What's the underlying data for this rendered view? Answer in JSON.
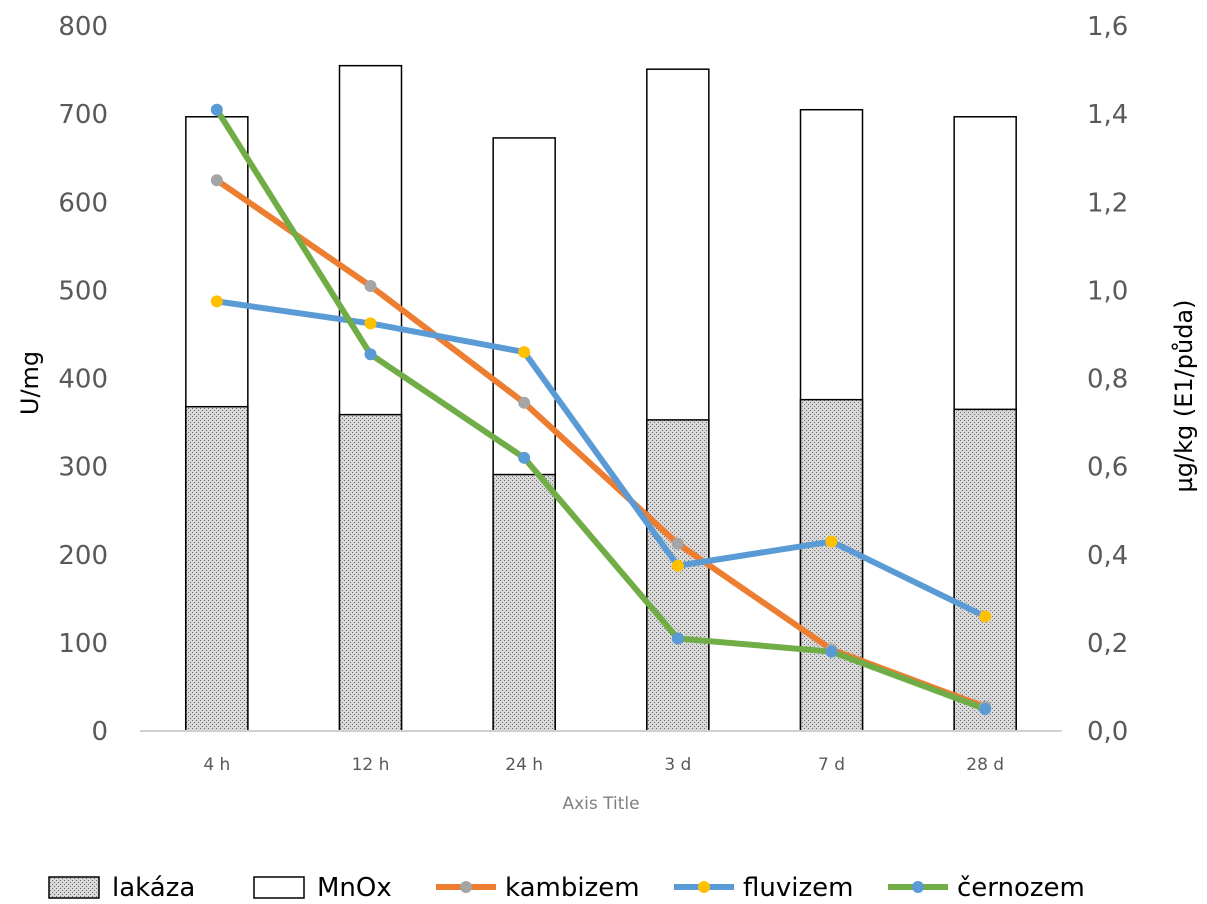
{
  "chart_data": {
    "type": "bar+line",
    "categories": [
      "4 h",
      "12 h",
      "24 h",
      "3 d",
      "7 d",
      "28 d"
    ],
    "xlabel": "Axis Title",
    "ylabel_left": "U/mg",
    "ylabel_right": "µg/kg (E1/půda)",
    "ylim_left": [
      0,
      800
    ],
    "ylim_right": [
      0,
      1.6
    ],
    "yticks_left": [
      "0",
      "100",
      "200",
      "300",
      "400",
      "500",
      "600",
      "700",
      "800"
    ],
    "yticks_right": [
      "0,0",
      "0,2",
      "0,4",
      "0,6",
      "0,8",
      "1,0",
      "1,2",
      "1,4",
      "1,6"
    ],
    "grid": false,
    "legend_position": "bottom",
    "bar_series": [
      {
        "name": "lakáza",
        "axis": "left",
        "pattern": "dotted-gray",
        "values": [
          368,
          359,
          291,
          353,
          376,
          365
        ]
      },
      {
        "name": "MnOx",
        "axis": "left",
        "pattern": "white",
        "values": [
          697,
          755,
          673,
          751,
          705,
          697
        ]
      }
    ],
    "line_series": [
      {
        "name": "kambizem",
        "axis": "right",
        "line_color": "#ED7D31",
        "marker_color": "#A5A5A5",
        "values": [
          1.25,
          1.01,
          0.745,
          0.425,
          0.185,
          0.055
        ]
      },
      {
        "name": "fluvizem",
        "axis": "right",
        "line_color": "#5B9BD5",
        "marker_color": "#FFC000",
        "values": [
          0.975,
          0.925,
          0.86,
          0.375,
          0.43,
          0.26
        ]
      },
      {
        "name": "černozem",
        "axis": "right",
        "line_color": "#70AD47",
        "marker_color": "#5B9BD5",
        "values": [
          1.41,
          0.855,
          0.62,
          0.21,
          0.18,
          0.05
        ]
      }
    ]
  }
}
